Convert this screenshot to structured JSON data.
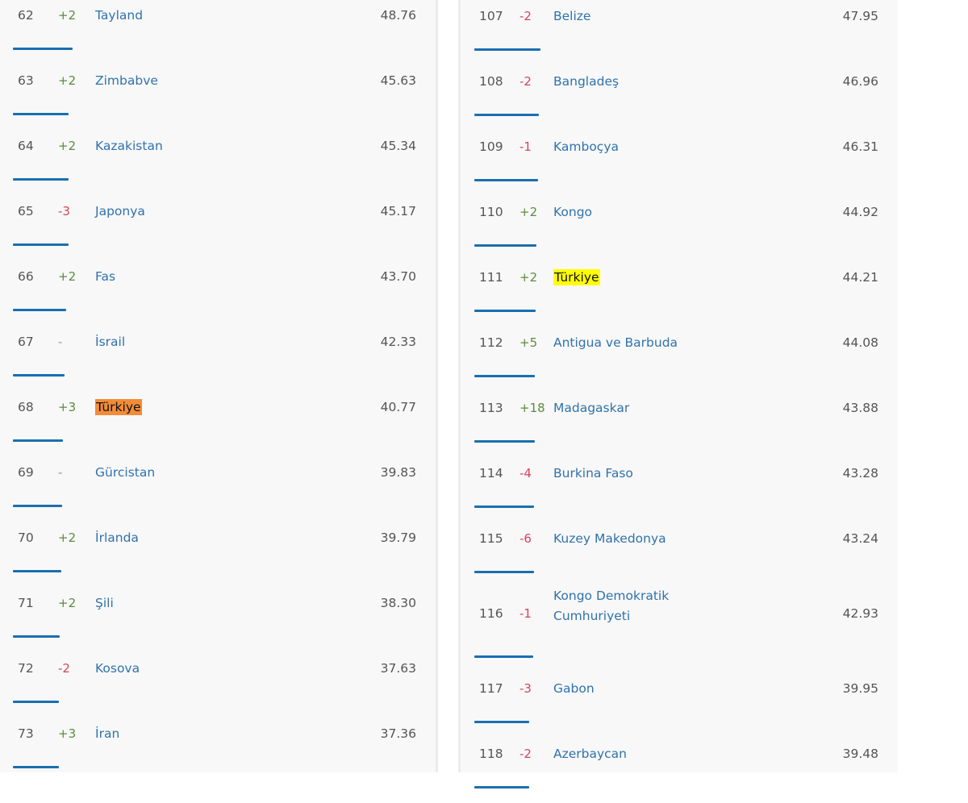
{
  "colors": {
    "bar": "#1a6fb0",
    "up": "#5b8c3e",
    "down": "#d6455c",
    "name": "#2f72ad",
    "highlight_left": "#f28c38",
    "highlight_right": "#ffff00"
  },
  "left_column": [
    {
      "rank": "62",
      "change": "+2",
      "country": "Tayland",
      "score": "48.76"
    },
    {
      "rank": "63",
      "change": "+2",
      "country": "Zimbabve",
      "score": "45.63"
    },
    {
      "rank": "64",
      "change": "+2",
      "country": "Kazakistan",
      "score": "45.34"
    },
    {
      "rank": "65",
      "change": "-3",
      "country": "Japonya",
      "score": "45.17"
    },
    {
      "rank": "66",
      "change": "+2",
      "country": "Fas",
      "score": "43.70"
    },
    {
      "rank": "67",
      "change": "-",
      "country": "İsrail",
      "score": "42.33"
    },
    {
      "rank": "68",
      "change": "+3",
      "country": "Türkiye",
      "score": "40.77",
      "highlight": "orange"
    },
    {
      "rank": "69",
      "change": "-",
      "country": "Gürcistan",
      "score": "39.83"
    },
    {
      "rank": "70",
      "change": "+2",
      "country": "İrlanda",
      "score": "39.79"
    },
    {
      "rank": "71",
      "change": "+2",
      "country": "Şili",
      "score": "38.30"
    },
    {
      "rank": "72",
      "change": "-2",
      "country": "Kosova",
      "score": "37.63"
    },
    {
      "rank": "73",
      "change": "+3",
      "country": "İran",
      "score": "37.36"
    }
  ],
  "right_column": [
    {
      "rank": "107",
      "change": "-2",
      "country": "Belize",
      "score": "47.95"
    },
    {
      "rank": "108",
      "change": "-2",
      "country": "Bangladeş",
      "score": "46.96"
    },
    {
      "rank": "109",
      "change": "-1",
      "country": "Kamboçya",
      "score": "46.31"
    },
    {
      "rank": "110",
      "change": "+2",
      "country": "Kongo",
      "score": "44.92"
    },
    {
      "rank": "111",
      "change": "+2",
      "country": "Türkiye",
      "score": "44.21",
      "highlight": "yellow"
    },
    {
      "rank": "112",
      "change": "+5",
      "country": "Antigua ve Barbuda",
      "score": "44.08"
    },
    {
      "rank": "113",
      "change": "+18",
      "country": "Madagaskar",
      "score": "43.88"
    },
    {
      "rank": "114",
      "change": "-4",
      "country": "Burkina Faso",
      "score": "43.28"
    },
    {
      "rank": "115",
      "change": "-6",
      "country": "Kuzey Makedonya",
      "score": "43.24"
    },
    {
      "rank": "116",
      "change": "-1",
      "country": "Kongo Demokratik Cumhuriyeti",
      "score": "42.93"
    },
    {
      "rank": "117",
      "change": "-3",
      "country": "Gabon",
      "score": "39.95"
    },
    {
      "rank": "118",
      "change": "-2",
      "country": "Azerbaycan",
      "score": "39.48"
    }
  ]
}
